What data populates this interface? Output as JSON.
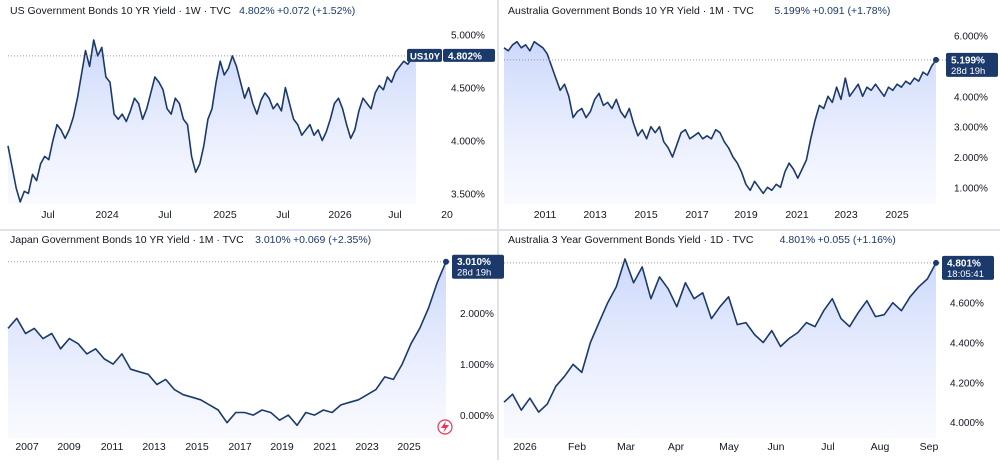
{
  "colors": {
    "line": "#1b3a6b",
    "fill_top": "#c9d6fb",
    "fill_bottom": "#f5f7ff",
    "badge_dark": "#1b3a6b",
    "title_text": "#131722",
    "value_text": "#1b3a6b",
    "axis_text": "#131722",
    "divider": "#e0e3eb",
    "dotted": "#9598a1",
    "lightning": "#e6355b"
  },
  "chart_data": [
    {
      "type": "line",
      "title": "US Government Bonds 10 YR Yield · 1W · TVC",
      "last": "4.802%",
      "change": "+0.072 (+1.52%)",
      "badge_symbol": "US10Y",
      "badge_value": "4.802%",
      "badge_sub": "",
      "x_ticks": [
        "Jul",
        "2024",
        "Jul",
        "2025",
        "Jul",
        "2026",
        "Jul",
        "20"
      ],
      "y_ticks": [
        "5.000%",
        "4.500%",
        "4.000%",
        "3.500%"
      ],
      "y_tick_values": [
        5.0,
        4.5,
        4.0,
        3.5
      ],
      "ylim": [
        3.4,
        5.12
      ],
      "x": [
        0,
        0.01,
        0.02,
        0.03,
        0.04,
        0.05,
        0.06,
        0.07,
        0.08,
        0.09,
        0.1,
        0.11,
        0.12,
        0.13,
        0.14,
        0.15,
        0.16,
        0.17,
        0.18,
        0.19,
        0.2,
        0.21,
        0.22,
        0.23,
        0.24,
        0.25,
        0.26,
        0.27,
        0.28,
        0.29,
        0.3,
        0.31,
        0.32,
        0.33,
        0.34,
        0.35,
        0.36,
        0.37,
        0.38,
        0.39,
        0.4,
        0.41,
        0.42,
        0.43,
        0.44,
        0.45,
        0.46,
        0.47,
        0.48,
        0.49,
        0.5,
        0.51,
        0.52,
        0.53,
        0.54,
        0.55,
        0.56,
        0.57,
        0.58,
        0.59,
        0.6,
        0.61,
        0.62,
        0.63,
        0.64,
        0.65,
        0.66,
        0.67,
        0.68,
        0.69,
        0.7,
        0.71,
        0.72,
        0.73,
        0.74,
        0.75,
        0.76,
        0.77,
        0.78,
        0.79,
        0.8,
        0.81,
        0.82,
        0.83,
        0.84,
        0.85,
        0.86,
        0.87,
        0.88,
        0.89,
        0.9,
        0.91,
        0.92,
        0.93,
        0.94,
        0.95,
        0.96,
        0.97,
        0.98,
        0.99,
        1.0
      ],
      "y": [
        3.95,
        3.75,
        3.55,
        3.42,
        3.52,
        3.5,
        3.68,
        3.62,
        3.78,
        3.85,
        3.82,
        4.0,
        4.15,
        4.1,
        4.02,
        4.1,
        4.22,
        4.4,
        4.62,
        4.85,
        4.7,
        4.95,
        4.8,
        4.88,
        4.6,
        4.55,
        4.25,
        4.2,
        4.25,
        4.18,
        4.28,
        4.4,
        4.35,
        4.2,
        4.3,
        4.45,
        4.6,
        4.55,
        4.48,
        4.3,
        4.25,
        4.4,
        4.35,
        4.2,
        4.15,
        3.85,
        3.7,
        3.78,
        3.95,
        4.2,
        4.3,
        4.55,
        4.75,
        4.62,
        4.68,
        4.8,
        4.7,
        4.55,
        4.4,
        4.5,
        4.35,
        4.25,
        4.38,
        4.45,
        4.4,
        4.3,
        4.35,
        4.28,
        4.5,
        4.35,
        4.2,
        4.15,
        4.05,
        4.1,
        4.15,
        4.05,
        4.1,
        4.0,
        4.08,
        4.2,
        4.35,
        4.4,
        4.3,
        4.15,
        4.02,
        4.1,
        4.28,
        4.4,
        4.35,
        4.3,
        4.45,
        4.52,
        4.48,
        4.6,
        4.55,
        4.65,
        4.7,
        4.75,
        4.72,
        4.78,
        4.8
      ]
    },
    {
      "type": "line",
      "title": "Australia Government Bonds 10 YR Yield · 1M · TVC",
      "last": "5.199%",
      "change": "+0.091 (+1.78%)",
      "badge_symbol": "",
      "badge_value": "5.199%",
      "badge_sub": "28d 19h",
      "x_ticks": [
        "2011",
        "2013",
        "2015",
        "2017",
        "2019",
        "2021",
        "2023",
        "2025"
      ],
      "y_ticks": [
        "6.000%",
        "5.000%",
        "4.000%",
        "3.000%",
        "2.000%",
        "1.000%"
      ],
      "y_tick_values": [
        6.0,
        5.0,
        4.0,
        3.0,
        2.0,
        1.0
      ],
      "ylim": [
        0.45,
        6.45
      ],
      "x": [
        0,
        0.01,
        0.02,
        0.03,
        0.04,
        0.05,
        0.06,
        0.07,
        0.08,
        0.09,
        0.1,
        0.11,
        0.12,
        0.13,
        0.14,
        0.15,
        0.16,
        0.17,
        0.18,
        0.19,
        0.2,
        0.21,
        0.22,
        0.23,
        0.24,
        0.25,
        0.26,
        0.27,
        0.28,
        0.29,
        0.3,
        0.31,
        0.32,
        0.33,
        0.34,
        0.35,
        0.36,
        0.37,
        0.38,
        0.39,
        0.4,
        0.41,
        0.42,
        0.43,
        0.44,
        0.45,
        0.46,
        0.47,
        0.48,
        0.49,
        0.5,
        0.51,
        0.52,
        0.53,
        0.54,
        0.55,
        0.56,
        0.57,
        0.58,
        0.59,
        0.6,
        0.61,
        0.62,
        0.63,
        0.64,
        0.65,
        0.66,
        0.67,
        0.68,
        0.69,
        0.7,
        0.71,
        0.72,
        0.73,
        0.74,
        0.75,
        0.76,
        0.77,
        0.78,
        0.79,
        0.8,
        0.81,
        0.82,
        0.83,
        0.84,
        0.85,
        0.86,
        0.87,
        0.88,
        0.89,
        0.9,
        0.91,
        0.92,
        0.93,
        0.94,
        0.95,
        0.96,
        0.97,
        0.98,
        0.99,
        1.0
      ],
      "y": [
        5.6,
        5.5,
        5.7,
        5.8,
        5.6,
        5.7,
        5.5,
        5.8,
        5.7,
        5.6,
        5.4,
        5.0,
        4.6,
        4.2,
        4.4,
        4.0,
        3.3,
        3.5,
        3.6,
        3.3,
        3.5,
        3.9,
        4.1,
        3.7,
        3.8,
        3.6,
        3.9,
        3.5,
        3.3,
        3.6,
        3.1,
        2.7,
        2.9,
        2.6,
        3.0,
        2.8,
        3.0,
        2.5,
        2.3,
        2.0,
        2.4,
        2.8,
        2.9,
        2.6,
        2.7,
        2.8,
        2.6,
        2.7,
        2.6,
        2.9,
        2.8,
        2.5,
        2.3,
        2.0,
        1.8,
        1.5,
        1.1,
        0.9,
        1.2,
        1.0,
        0.8,
        1.0,
        0.9,
        1.1,
        1.0,
        1.5,
        1.8,
        1.6,
        1.3,
        1.6,
        1.9,
        2.6,
        3.2,
        3.7,
        3.6,
        4.0,
        3.8,
        4.3,
        3.9,
        4.6,
        4.0,
        4.2,
        4.4,
        4.0,
        4.3,
        4.2,
        4.4,
        4.2,
        4.0,
        4.3,
        4.2,
        4.4,
        4.3,
        4.5,
        4.4,
        4.6,
        4.5,
        4.8,
        4.7,
        5.0,
        5.2
      ]
    },
    {
      "type": "line",
      "title": "Japan Government Bonds 10 YR Yield · 1M · TVC",
      "last": "3.010%",
      "change": "+0.069 (+2.35%)",
      "badge_symbol": "",
      "badge_value": "3.010%",
      "badge_sub": "28d 19h",
      "x_ticks": [
        "2007",
        "2009",
        "2011",
        "2013",
        "2015",
        "2017",
        "2019",
        "2021",
        "2023",
        "2025"
      ],
      "y_ticks": [
        "2.000%",
        "1.000%",
        "0.000%"
      ],
      "y_tick_values": [
        2.0,
        1.0,
        0.0
      ],
      "ylim": [
        -0.45,
        3.22
      ],
      "x": [
        0,
        0.02,
        0.04,
        0.06,
        0.08,
        0.1,
        0.12,
        0.14,
        0.16,
        0.18,
        0.2,
        0.22,
        0.24,
        0.26,
        0.28,
        0.3,
        0.32,
        0.34,
        0.36,
        0.38,
        0.4,
        0.42,
        0.44,
        0.46,
        0.48,
        0.5,
        0.52,
        0.54,
        0.56,
        0.58,
        0.6,
        0.62,
        0.64,
        0.66,
        0.68,
        0.7,
        0.72,
        0.74,
        0.76,
        0.78,
        0.8,
        0.82,
        0.84,
        0.86,
        0.88,
        0.9,
        0.92,
        0.94,
        0.96,
        0.98,
        1.0
      ],
      "y": [
        1.7,
        1.9,
        1.6,
        1.7,
        1.5,
        1.6,
        1.3,
        1.5,
        1.4,
        1.2,
        1.3,
        1.1,
        1.0,
        1.2,
        0.9,
        0.85,
        0.8,
        0.6,
        0.7,
        0.5,
        0.4,
        0.35,
        0.3,
        0.2,
        0.1,
        -0.15,
        0.05,
        0.05,
        0.0,
        0.1,
        0.05,
        -0.1,
        0.0,
        -0.2,
        0.05,
        0.0,
        0.1,
        0.05,
        0.2,
        0.25,
        0.3,
        0.4,
        0.5,
        0.75,
        0.7,
        1.0,
        1.4,
        1.7,
        2.1,
        2.6,
        3.01
      ]
    },
    {
      "type": "line",
      "title": "Australia 3 Year Government Bonds Yield · 1D · TVC",
      "last": "4.801%",
      "change": "+0.055 (+1.16%)",
      "badge_symbol": "",
      "badge_value": "4.801%",
      "badge_sub": "18:05:41",
      "x_ticks": [
        "2026",
        "Feb",
        "Mar",
        "Apr",
        "May",
        "Jun",
        "Jul",
        "Aug",
        "Sep"
      ],
      "y_ticks": [
        "4.600%",
        "4.400%",
        "4.200%",
        "4.000%"
      ],
      "y_tick_values": [
        4.6,
        4.4,
        4.2,
        4.0
      ],
      "ylim": [
        3.92,
        4.86
      ],
      "x": [
        0,
        0.02,
        0.04,
        0.06,
        0.08,
        0.1,
        0.12,
        0.14,
        0.16,
        0.18,
        0.2,
        0.22,
        0.24,
        0.26,
        0.28,
        0.3,
        0.32,
        0.34,
        0.36,
        0.38,
        0.4,
        0.42,
        0.44,
        0.46,
        0.48,
        0.5,
        0.52,
        0.54,
        0.56,
        0.58,
        0.6,
        0.62,
        0.64,
        0.66,
        0.68,
        0.7,
        0.72,
        0.74,
        0.76,
        0.78,
        0.8,
        0.82,
        0.84,
        0.86,
        0.88,
        0.9,
        0.92,
        0.94,
        0.96,
        0.98,
        1.0
      ],
      "y": [
        4.1,
        4.14,
        4.06,
        4.12,
        4.05,
        4.09,
        4.18,
        4.23,
        4.29,
        4.25,
        4.4,
        4.5,
        4.6,
        4.68,
        4.82,
        4.7,
        4.78,
        4.62,
        4.73,
        4.67,
        4.58,
        4.7,
        4.62,
        4.65,
        4.52,
        4.58,
        4.63,
        4.49,
        4.5,
        4.44,
        4.4,
        4.46,
        4.38,
        4.42,
        4.45,
        4.5,
        4.48,
        4.56,
        4.62,
        4.52,
        4.48,
        4.55,
        4.61,
        4.53,
        4.54,
        4.6,
        4.56,
        4.63,
        4.68,
        4.72,
        4.8
      ]
    }
  ]
}
